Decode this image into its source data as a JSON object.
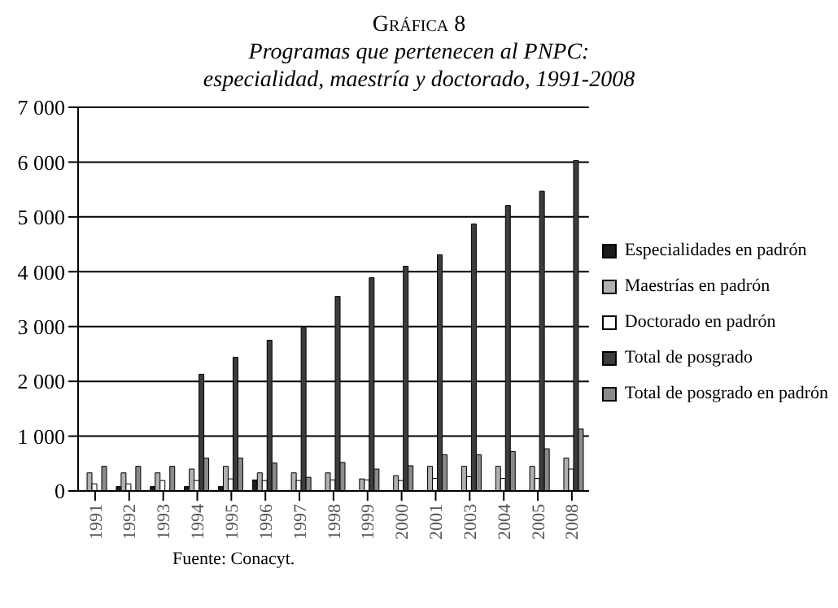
{
  "chart_data": {
    "type": "bar",
    "title": "Gráfica 8",
    "subtitle": "Programas que pertenecen al PNPC:\nespecialidad, maestría y doctorado, 1991-2008",
    "categories": [
      "1991",
      "1992",
      "1993",
      "1994",
      "1995",
      "1996",
      "1997",
      "1998",
      "1999",
      "2000",
      "2001",
      "2003",
      "2004",
      "2005",
      "2008"
    ],
    "series": [
      {
        "name": "Especialidades en padrón",
        "color": "#1a1a1a",
        "values": [
          0,
          80,
          80,
          80,
          80,
          200,
          0,
          0,
          0,
          0,
          0,
          0,
          0,
          0,
          0
        ]
      },
      {
        "name": "Maestrías en padrón",
        "color": "#b0b0b0",
        "values": [
          330,
          330,
          330,
          400,
          450,
          330,
          330,
          330,
          220,
          280,
          450,
          450,
          450,
          450,
          600
        ]
      },
      {
        "name": "Doctorado en padrón",
        "color": "#ffffff",
        "values": [
          130,
          130,
          190,
          190,
          220,
          190,
          190,
          200,
          200,
          190,
          230,
          260,
          230,
          230,
          400
        ]
      },
      {
        "name": "Total de posgrado",
        "color": "#3c3c3c",
        "values": [
          null,
          null,
          null,
          2130,
          2440,
          2750,
          2980,
          3550,
          3890,
          4100,
          4310,
          4870,
          5210,
          5470,
          6030
        ]
      },
      {
        "name": "Total de posgrado en padrón",
        "color": "#8a8a8a",
        "values": [
          450,
          450,
          450,
          600,
          600,
          510,
          250,
          520,
          400,
          460,
          660,
          660,
          720,
          770,
          1130
        ]
      }
    ],
    "ylim": [
      0,
      7000
    ],
    "yticks": [
      0,
      {
        "value": 1000,
        "label": "1 000"
      },
      {
        "value": 2000,
        "label": "2 000"
      },
      {
        "value": 3000,
        "label": "3 000"
      },
      {
        "value": 4000,
        "label": "4 000"
      },
      {
        "value": 5000,
        "label": "5 000"
      },
      {
        "value": 6000,
        "label": "6 000"
      },
      {
        "value": 7000,
        "label": "7 000"
      }
    ],
    "grid": "y",
    "legend": "right",
    "annotations": [
      "Fuente: Conacyt."
    ]
  }
}
